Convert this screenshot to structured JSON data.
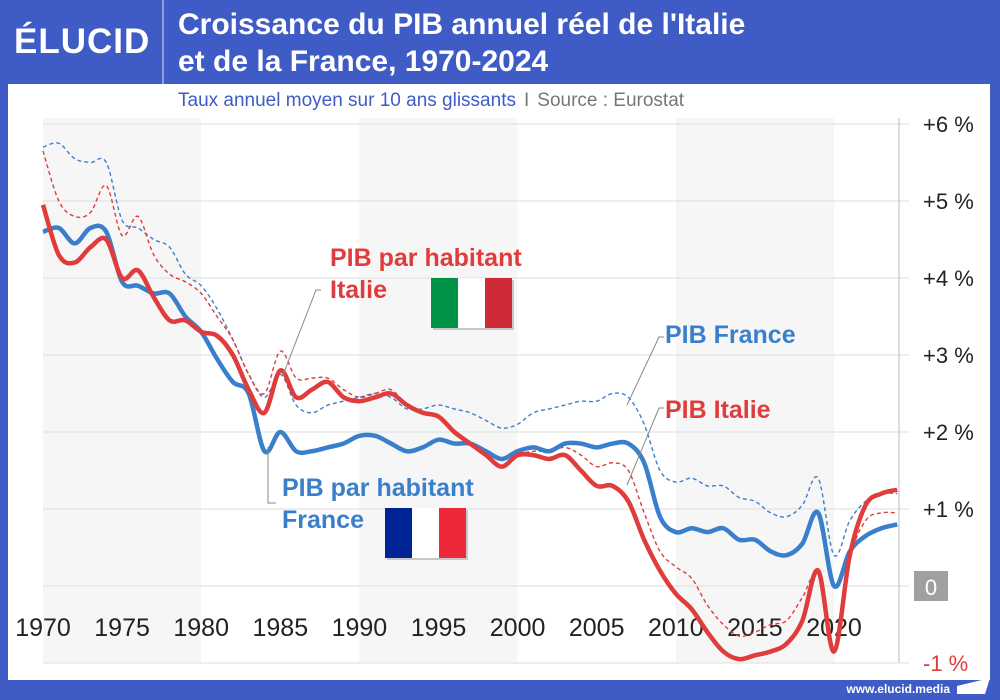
{
  "header": {
    "logo": "ÉLUCID",
    "title_line1": "Croissance du PIB annuel réel de l'Italie",
    "title_line2": "et de la France, 1970-2024",
    "subtitle": "Taux annuel moyen sur 10 ans glissants",
    "separator": "I",
    "source": "Source : Eurostat"
  },
  "footer": {
    "url": "www.elucid.media"
  },
  "colors": {
    "frame": "#3f5bc6",
    "france": "#3a7fcc",
    "italie": "#e03c3c",
    "zero_badge": "#a0a0a0"
  },
  "chart_data": {
    "type": "line",
    "x_start": 1970,
    "x_end": 2024,
    "ylim": [
      -1,
      6
    ],
    "yticks": [
      {
        "v": 6,
        "label": "+6 %"
      },
      {
        "v": 5,
        "label": "+5 %"
      },
      {
        "v": 4,
        "label": "+4 %"
      },
      {
        "v": 3,
        "label": "+3 %"
      },
      {
        "v": 2,
        "label": "+2 %"
      },
      {
        "v": 1,
        "label": "+1 %"
      },
      {
        "v": 0,
        "label": "0"
      },
      {
        "v": -1,
        "label": "-1 %"
      }
    ],
    "xticks": [
      1970,
      1975,
      1980,
      1985,
      1990,
      1995,
      2000,
      2005,
      2010,
      2015,
      2020
    ],
    "shaded_decades": [
      [
        1970,
        1980
      ],
      [
        1990,
        2000
      ],
      [
        2010,
        2020
      ]
    ],
    "grid": true,
    "series": [
      {
        "name": "PIB France",
        "style": "dashed",
        "color": "#3a7fcc",
        "values": [
          5.7,
          5.75,
          5.55,
          5.5,
          5.5,
          4.75,
          4.65,
          4.5,
          4.4,
          4.05,
          3.9,
          3.6,
          3.2,
          2.75,
          2.45,
          2.75,
          2.35,
          2.25,
          2.35,
          2.4,
          2.45,
          2.5,
          2.45,
          2.3,
          2.3,
          2.35,
          2.3,
          2.25,
          2.15,
          2.05,
          2.1,
          2.25,
          2.3,
          2.35,
          2.4,
          2.4,
          2.5,
          2.45,
          2.1,
          1.5,
          1.35,
          1.4,
          1.3,
          1.3,
          1.15,
          1.1,
          0.95,
          0.9,
          1.05,
          1.4,
          0.4,
          0.85,
          1.1,
          1.2,
          1.2
        ]
      },
      {
        "name": "PIB Italie",
        "style": "dashed",
        "color": "#e03c3c",
        "values": [
          5.65,
          5.0,
          4.8,
          4.85,
          5.2,
          4.55,
          4.8,
          4.3,
          4.05,
          3.95,
          3.8,
          3.5,
          3.2,
          2.75,
          2.5,
          3.05,
          2.7,
          2.7,
          2.7,
          2.55,
          2.45,
          2.5,
          2.55,
          2.35,
          2.25,
          2.2,
          2.0,
          1.85,
          1.7,
          1.55,
          1.7,
          1.75,
          1.75,
          1.8,
          1.7,
          1.55,
          1.6,
          1.5,
          0.95,
          0.45,
          0.25,
          0.1,
          -0.25,
          -0.5,
          -0.65,
          -0.6,
          -0.5,
          -0.45,
          -0.15,
          0.15,
          -0.85,
          0.35,
          0.85,
          0.95,
          0.95
        ]
      },
      {
        "name": "PIB par habitant France",
        "style": "solid",
        "color": "#3a7fcc",
        "values": [
          4.6,
          4.65,
          4.45,
          4.65,
          4.6,
          3.95,
          3.9,
          3.8,
          3.8,
          3.5,
          3.3,
          2.95,
          2.65,
          2.5,
          1.75,
          2.0,
          1.75,
          1.75,
          1.8,
          1.85,
          1.95,
          1.95,
          1.85,
          1.75,
          1.8,
          1.9,
          1.85,
          1.85,
          1.75,
          1.65,
          1.75,
          1.8,
          1.75,
          1.85,
          1.85,
          1.8,
          1.85,
          1.85,
          1.6,
          0.9,
          0.7,
          0.75,
          0.7,
          0.75,
          0.6,
          0.6,
          0.45,
          0.4,
          0.55,
          0.95,
          0.0,
          0.45,
          0.65,
          0.75,
          0.8
        ]
      },
      {
        "name": "PIB par habitant Italie",
        "style": "solid",
        "color": "#e03c3c",
        "values": [
          4.95,
          4.3,
          4.2,
          4.4,
          4.5,
          4.0,
          4.1,
          3.75,
          3.45,
          3.45,
          3.3,
          3.25,
          3.0,
          2.55,
          2.25,
          2.8,
          2.45,
          2.55,
          2.65,
          2.45,
          2.4,
          2.45,
          2.5,
          2.35,
          2.25,
          2.2,
          2.0,
          1.85,
          1.7,
          1.55,
          1.7,
          1.7,
          1.65,
          1.7,
          1.5,
          1.3,
          1.3,
          1.1,
          0.6,
          0.2,
          -0.1,
          -0.3,
          -0.6,
          -0.85,
          -0.95,
          -0.9,
          -0.85,
          -0.75,
          -0.45,
          0.2,
          -0.85,
          0.4,
          1.05,
          1.2,
          1.25
        ]
      }
    ],
    "annotations": {
      "pc_italie_1": "PIB par habitant",
      "pc_italie_2": "Italie",
      "pib_france": "PIB France",
      "pib_italie": "PIB Italie",
      "pc_france_1": "PIB par habitant",
      "pc_france_2": "France"
    },
    "flags": {
      "italie": [
        "#009246",
        "#ffffff",
        "#ce2b37"
      ],
      "france": [
        "#002395",
        "#ffffff",
        "#ed2939"
      ]
    }
  }
}
